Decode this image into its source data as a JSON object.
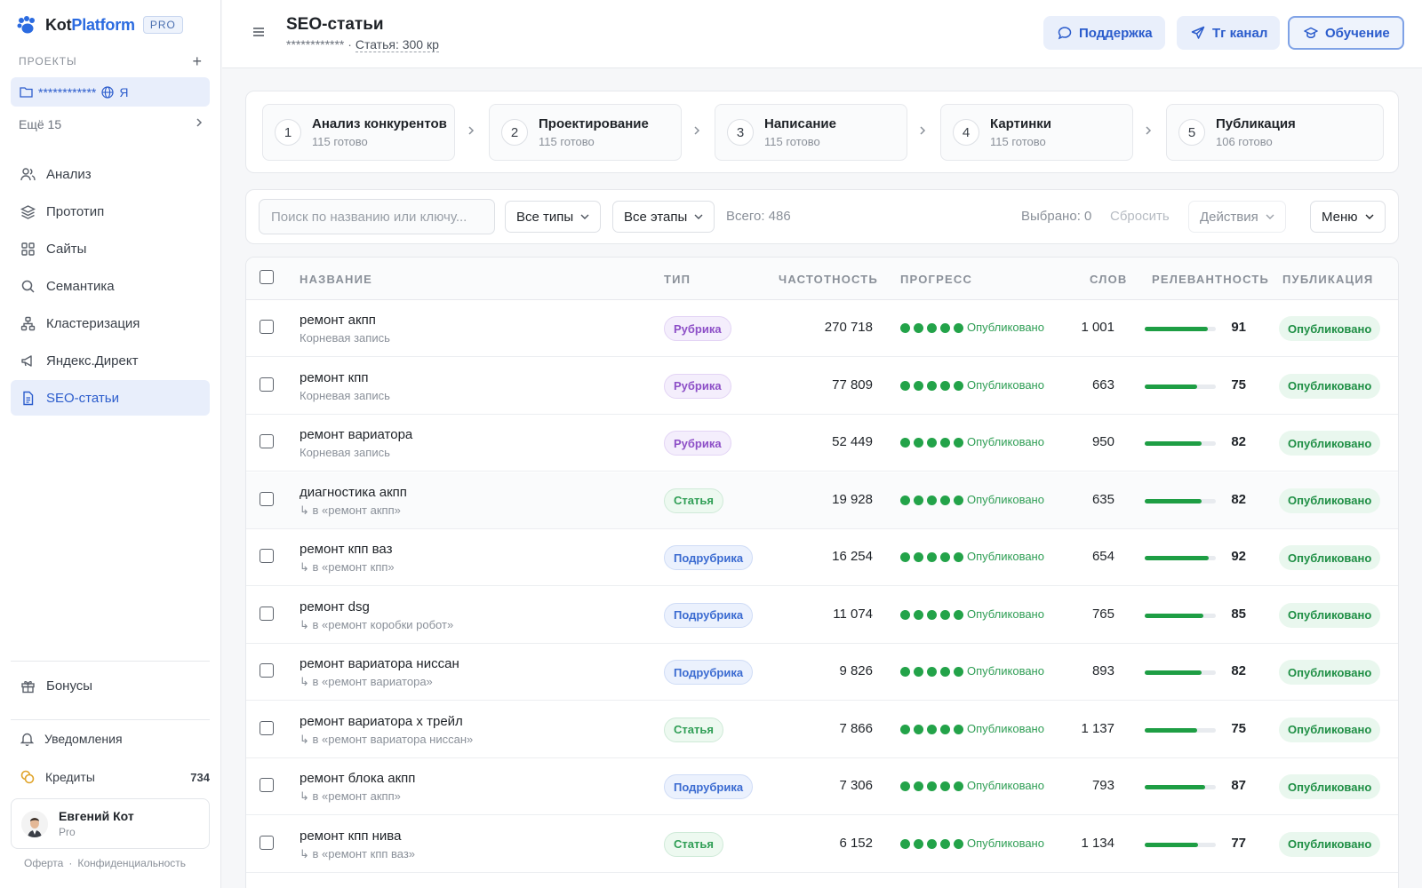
{
  "brand": {
    "name_a": "Kot",
    "name_b": "Platform",
    "pro": "PRO"
  },
  "sidebar": {
    "projects_label": "ПРОЕКТЫ",
    "project": {
      "name": "************",
      "suffix": "Я"
    },
    "more": "Ещё 15",
    "items": [
      {
        "label": "Анализ",
        "icon": "users-icon"
      },
      {
        "label": "Прототип",
        "icon": "layers-icon"
      },
      {
        "label": "Сайты",
        "icon": "grid-icon"
      },
      {
        "label": "Семантика",
        "icon": "search-icon"
      },
      {
        "label": "Кластеризация",
        "icon": "cluster-icon"
      },
      {
        "label": "Яндекс.Директ",
        "icon": "megaphone-icon"
      },
      {
        "label": "SEO-статьи",
        "icon": "document-icon",
        "active": true
      }
    ],
    "bonus": "Бонусы",
    "notifications": "Уведомления",
    "credits": {
      "label": "Кредиты",
      "value": "734"
    },
    "user": {
      "name": "Евгений Кот",
      "plan": "Pro"
    },
    "footer": {
      "offer": "Оферта",
      "privacy": "Конфиденциальность"
    }
  },
  "header": {
    "title": "SEO-статьи",
    "sub_masked": "************ ·",
    "sub_link": "Статья: 300 кр",
    "buttons": {
      "support": "Поддержка",
      "tg": "Тг канал",
      "learning": "Обучение"
    }
  },
  "steps": [
    {
      "num": "1",
      "title": "Анализ конкурентов",
      "sub": "115 готово"
    },
    {
      "num": "2",
      "title": "Проектирование",
      "sub": "115 готово"
    },
    {
      "num": "3",
      "title": "Написание",
      "sub": "115 готово"
    },
    {
      "num": "4",
      "title": "Картинки",
      "sub": "115 готово"
    },
    {
      "num": "5",
      "title": "Публикация",
      "sub": "106 готово"
    }
  ],
  "filters": {
    "search_placeholder": "Поиск по названию или ключу...",
    "types": "Все типы",
    "stages": "Все этапы",
    "total": "Всего: 486",
    "selected": "Выбрано: 0",
    "reset": "Сбросить",
    "actions": "Действия",
    "menu": "Меню"
  },
  "table": {
    "columns": [
      "НАЗВАНИЕ",
      "ТИП",
      "ЧАСТОТНОСТЬ",
      "ПРОГРЕСС",
      "СЛОВ",
      "РЕЛЕВАНТНОСТЬ",
      "ПУБЛИКАЦИЯ"
    ],
    "rows": [
      {
        "name": "ремонт акпп",
        "sub": "Корневая запись",
        "type": "Рубрика",
        "freq": "270 718",
        "progress": "Опубликовано",
        "words": "1 001",
        "rel": "91",
        "pub": "Опубликовано"
      },
      {
        "name": "ремонт кпп",
        "sub": "Корневая запись",
        "type": "Рубрика",
        "freq": "77 809",
        "progress": "Опубликовано",
        "words": "663",
        "rel": "75",
        "pub": "Опубликовано"
      },
      {
        "name": "ремонт вариатора",
        "sub": "Корневая запись",
        "type": "Рубрика",
        "freq": "52 449",
        "progress": "Опубликовано",
        "words": "950",
        "rel": "82",
        "pub": "Опубликовано"
      },
      {
        "name": "диагностика акпп",
        "sub": "↳ в «ремонт акпп»",
        "type": "Статья",
        "freq": "19 928",
        "progress": "Опубликовано",
        "words": "635",
        "rel": "82",
        "pub": "Опубликовано"
      },
      {
        "name": "ремонт кпп ваз",
        "sub": "↳ в «ремонт кпп»",
        "type": "Подрубрика",
        "freq": "16 254",
        "progress": "Опубликовано",
        "words": "654",
        "rel": "92",
        "pub": "Опубликовано"
      },
      {
        "name": "ремонт dsg",
        "sub": "↳ в «ремонт коробки робот»",
        "type": "Подрубрика",
        "freq": "11 074",
        "progress": "Опубликовано",
        "words": "765",
        "rel": "85",
        "pub": "Опубликовано"
      },
      {
        "name": "ремонт вариатора ниссан",
        "sub": "↳ в «ремонт вариатора»",
        "type": "Подрубрика",
        "freq": "9 826",
        "progress": "Опубликовано",
        "words": "893",
        "rel": "82",
        "pub": "Опубликовано"
      },
      {
        "name": "ремонт вариатора х трейл",
        "sub": "↳ в «ремонт вариатора ниссан»",
        "type": "Статья",
        "freq": "7 866",
        "progress": "Опубликовано",
        "words": "1 137",
        "rel": "75",
        "pub": "Опубликовано"
      },
      {
        "name": "ремонт блока акпп",
        "sub": "↳ в «ремонт акпп»",
        "type": "Подрубрика",
        "freq": "7 306",
        "progress": "Опубликовано",
        "words": "793",
        "rel": "87",
        "pub": "Опубликовано"
      },
      {
        "name": "ремонт кпп нива",
        "sub": "↳ в «ремонт кпп ваз»",
        "type": "Статья",
        "freq": "6 152",
        "progress": "Опубликовано",
        "words": "1 134",
        "rel": "77",
        "pub": "Опубликовано"
      }
    ]
  },
  "colors": {
    "accent": "#2b5ccc",
    "success": "#23a349"
  }
}
